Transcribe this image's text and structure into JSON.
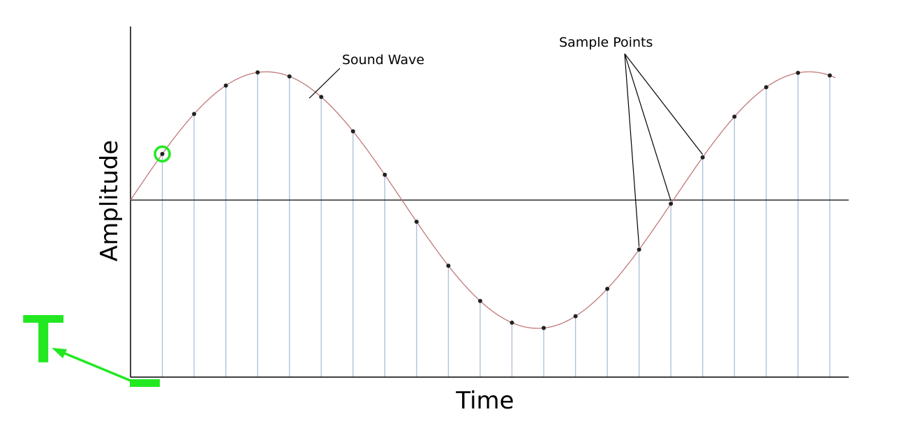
{
  "labels": {
    "sound_wave": "Sound Wave",
    "sample_points": "Sample Points",
    "y_axis": "Amplitude",
    "x_axis": "Time",
    "annotation_letter": "T"
  },
  "colors": {
    "wave": "#c0787a",
    "sample_line": "#a8bfd6",
    "axis": "#000000",
    "sample_dot": "#222222",
    "highlight": "#22e822"
  },
  "chart_data": {
    "type": "line",
    "wave": {
      "cycles": 1.3,
      "shape": "sine"
    },
    "samples": {
      "count": 22,
      "highlighted_index": 0,
      "callout_indices": [
        15,
        16,
        17
      ]
    },
    "grid": false
  }
}
